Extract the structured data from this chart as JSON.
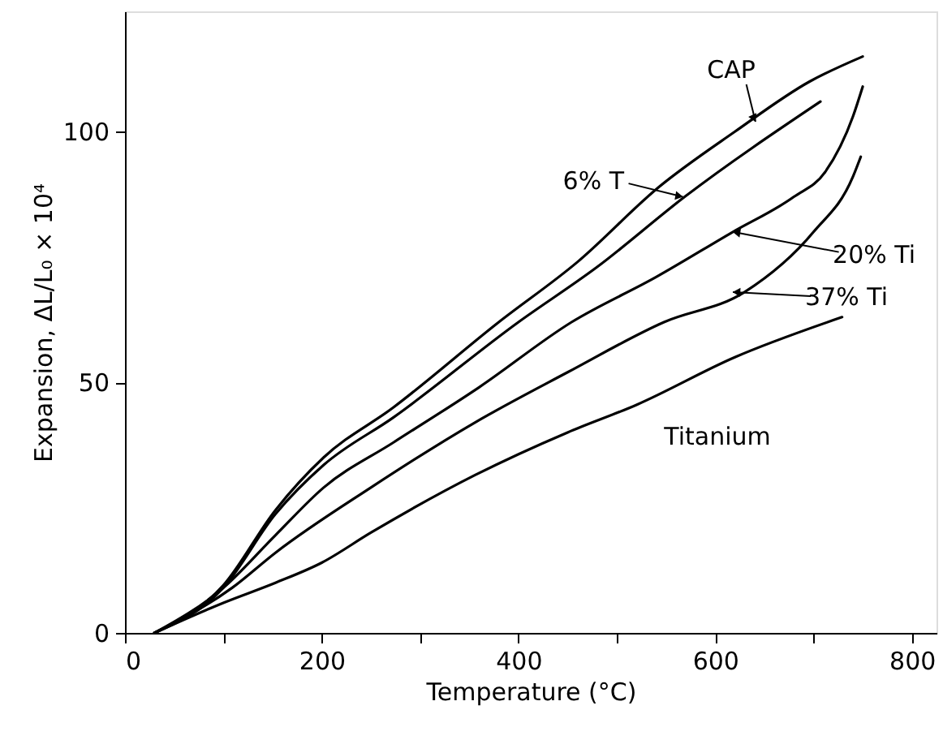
{
  "chart_data": {
    "type": "line",
    "xlabel": "Temperature (°C)",
    "ylabel": "Expansion, ΔL/L₀ × 10⁴",
    "xlim": [
      0,
      825
    ],
    "ylim": [
      0,
      124
    ],
    "xticks": [
      0,
      {
        "value": 100,
        "label": null
      },
      200,
      {
        "value": 300,
        "label": null
      },
      400,
      {
        "value": 500,
        "label": null
      },
      600,
      {
        "value": 700,
        "label": null
      },
      800
    ],
    "yticks": [
      0,
      50,
      100
    ],
    "grid": false,
    "marker": "none",
    "line_style": "solid",
    "series": [
      {
        "color": "#000000",
        "x": [
          30,
          100,
          153,
          202,
          273,
          380,
          460,
          543,
          620,
          696,
          750
        ],
        "values": [
          0,
          9.5,
          24.5,
          35,
          45,
          62,
          74,
          89,
          100,
          110,
          115
        ]
      },
      {
        "color": "#000000",
        "x": [
          30,
          100,
          153,
          202,
          273,
          400,
          480,
          569,
          707
        ],
        "values": [
          0,
          9,
          23.7,
          33.5,
          43,
          62,
          73,
          87,
          106
        ]
      },
      {
        "color": "#000000",
        "x": [
          30,
          100,
          153,
          202,
          273,
          360,
          454,
          540,
          618,
          680,
          712,
          740,
          750
        ],
        "values": [
          0,
          9,
          19.5,
          29,
          38,
          49,
          62,
          71,
          80,
          87,
          92,
          103,
          109
        ]
      },
      {
        "color": "#000000",
        "x": [
          30,
          109,
          153,
          250,
          356,
          450,
          548,
          630,
          700,
          740,
          748
        ],
        "values": [
          0,
          9,
          16,
          29,
          42,
          52,
          62,
          68,
          80,
          91,
          95
        ]
      },
      {
        "color": "#000000",
        "x": [
          30,
          100,
          153,
          200,
          250,
          356,
          450,
          520,
          620,
          729
        ],
        "values": [
          0,
          6,
          10,
          14,
          20,
          31.5,
          40,
          45.5,
          55,
          63
        ]
      }
    ],
    "annotations": [
      {
        "text": "CAP",
        "x": 641,
        "y": 102
      },
      {
        "text": "6% T",
        "x": 567,
        "y": 87
      },
      {
        "text": "20% Ti",
        "x": 618,
        "y": 80
      },
      {
        "text": "37% Ti",
        "x": 618,
        "y": 68
      },
      "Titanium"
    ]
  }
}
